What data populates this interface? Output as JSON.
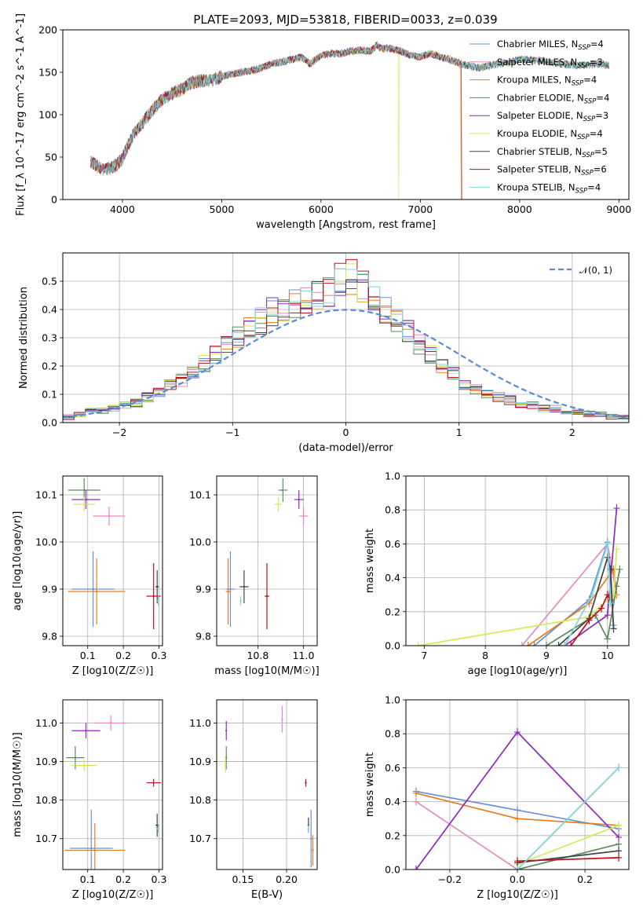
{
  "figure_title": "PLATE=2093, MJD=53818, FIBERID=0033, z=0.039",
  "colors": {
    "Chabrier MILES": "#6b8fd6",
    "Salpeter MILES": "#e68bbf",
    "Kroupa MILES": "#e87d1e",
    "Chabrier ELODIE": "#5e8a5e",
    "Salpeter ELODIE": "#8e2bb8",
    "Kroupa ELODIE": "#d2ea5a",
    "Chabrier STELIB": "#444444",
    "Salpeter STELIB": "#c0101a",
    "Kroupa STELIB": "#7fd6dc"
  },
  "legend": [
    {
      "name": "Chabrier MILES",
      "nssp": "4"
    },
    {
      "name": "Salpeter MILES",
      "nssp": "3"
    },
    {
      "name": "Kroupa MILES",
      "nssp": "4"
    },
    {
      "name": "Chabrier ELODIE",
      "nssp": "4"
    },
    {
      "name": "Salpeter ELODIE",
      "nssp": "3"
    },
    {
      "name": "Kroupa ELODIE",
      "nssp": "4"
    },
    {
      "name": "Chabrier STELIB",
      "nssp": "5"
    },
    {
      "name": "Salpeter STELIB",
      "nssp": "6"
    },
    {
      "name": "Kroupa STELIB",
      "nssp": "4"
    }
  ],
  "chart_data": [
    {
      "type": "line",
      "id": "spectrum",
      "title": "PLATE=2093, MJD=53818, FIBERID=0033, z=0.039",
      "xlabel": "wavelength [Angstrom, rest frame]",
      "ylabel": "Flux [f_λ 10^-17 erg cm^-2 s^-1 A^-1]",
      "xlim": [
        3400,
        9100
      ],
      "ylim": [
        0,
        200
      ],
      "xticks": [
        4000,
        5000,
        6000,
        7000,
        8000,
        9000
      ],
      "yticks": [
        0,
        50,
        100,
        150,
        200
      ],
      "x": [
        3680,
        3800,
        3900,
        3950,
        4000,
        4100,
        4200,
        4300,
        4400,
        4500,
        4600,
        4700,
        4800,
        4900,
        5000,
        5100,
        5200,
        5300,
        5400,
        5500,
        5600,
        5700,
        5800,
        5890,
        6000,
        6100,
        6200,
        6300,
        6400,
        6500,
        6563,
        6600,
        6700,
        6800,
        6900,
        7000,
        7100,
        7200,
        7300,
        7400,
        7600,
        7700,
        7800,
        7900,
        8000,
        8200,
        8400,
        8600,
        8800,
        8900
      ],
      "y": [
        45,
        35,
        38,
        42,
        48,
        75,
        90,
        105,
        118,
        125,
        130,
        138,
        140,
        140,
        145,
        148,
        150,
        152,
        155,
        160,
        162,
        165,
        168,
        160,
        170,
        172,
        172,
        175,
        176,
        175,
        182,
        178,
        178,
        175,
        170,
        168,
        172,
        168,
        165,
        160,
        155,
        158,
        160,
        162,
        165,
        164,
        160,
        158,
        160,
        158
      ]
    },
    {
      "type": "histogram",
      "id": "residuals",
      "xlabel": "(data-model)/error",
      "ylabel": "Normed distribution",
      "xlim": [
        -2.5,
        2.5
      ],
      "ylim": [
        0,
        0.6
      ],
      "xticks": [
        -2,
        -1,
        0,
        1,
        2
      ],
      "yticks": [
        0.0,
        0.1,
        0.2,
        0.3,
        0.4,
        0.5
      ],
      "legend_entry": "𝒩(0, 1)",
      "bin_edges": [
        -2.5,
        -2.4,
        -2.3,
        -2.2,
        -2.1,
        -2.0,
        -1.9,
        -1.8,
        -1.7,
        -1.6,
        -1.5,
        -1.4,
        -1.3,
        -1.2,
        -1.1,
        -1.0,
        -0.9,
        -0.8,
        -0.7,
        -0.6,
        -0.5,
        -0.4,
        -0.3,
        -0.2,
        -0.1,
        0.0,
        0.1,
        0.2,
        0.3,
        0.4,
        0.5,
        0.6,
        0.7,
        0.8,
        0.9,
        1.0,
        1.1,
        1.2,
        1.3,
        1.4,
        1.5,
        1.6,
        1.7,
        1.8,
        1.9,
        2.0,
        2.1,
        2.2,
        2.3,
        2.4,
        2.5
      ],
      "counts": [
        0.02,
        0.03,
        0.04,
        0.04,
        0.05,
        0.06,
        0.07,
        0.09,
        0.11,
        0.13,
        0.15,
        0.18,
        0.21,
        0.24,
        0.27,
        0.3,
        0.33,
        0.36,
        0.39,
        0.41,
        0.42,
        0.43,
        0.45,
        0.47,
        0.5,
        0.52,
        0.48,
        0.44,
        0.4,
        0.36,
        0.33,
        0.28,
        0.24,
        0.2,
        0.17,
        0.14,
        0.12,
        0.1,
        0.09,
        0.08,
        0.06,
        0.06,
        0.05,
        0.05,
        0.04,
        0.04,
        0.03,
        0.03,
        0.02,
        0.02
      ],
      "normal_mean": 0,
      "normal_sigma": 1
    },
    {
      "type": "scatter",
      "id": "age-vs-Z",
      "xlabel": "Z [log10(Z/Z☉)]",
      "ylabel": "age [log10(age/yr)]",
      "xlim": [
        0.03,
        0.31
      ],
      "ylim": [
        9.78,
        10.14
      ],
      "xticks": [
        0.1,
        0.2,
        0.3
      ],
      "yticks": [
        9.8,
        9.9,
        10.0,
        10.1
      ],
      "points": [
        {
          "series": "Chabrier MILES",
          "x": 0.115,
          "y": 9.9,
          "xerr": 0.06,
          "yerr": 0.08
        },
        {
          "series": "Salpeter MILES",
          "x": 0.16,
          "y": 10.055,
          "xerr": 0.045,
          "yerr": 0.02
        },
        {
          "series": "Kroupa MILES",
          "x": 0.125,
          "y": 9.895,
          "xerr": 0.08,
          "yerr": 0.07
        },
        {
          "series": "Chabrier ELODIE",
          "x": 0.09,
          "y": 10.11,
          "xerr": 0.045,
          "yerr": 0.025
        },
        {
          "series": "Salpeter ELODIE",
          "x": 0.095,
          "y": 10.09,
          "xerr": 0.04,
          "yerr": 0.02
        },
        {
          "series": "Kroupa ELODIE",
          "x": 0.09,
          "y": 10.08,
          "xerr": 0.03,
          "yerr": 0.015
        },
        {
          "series": "Chabrier STELIB",
          "x": 0.295,
          "y": 9.905,
          "xerr": 0.005,
          "yerr": 0.035
        },
        {
          "series": "Salpeter STELIB",
          "x": 0.285,
          "y": 9.885,
          "xerr": 0.02,
          "yerr": 0.07
        },
        {
          "series": "Kroupa STELIB",
          "x": 0.298,
          "y": 9.875,
          "xerr": 0.004,
          "yerr": 0.01
        }
      ]
    },
    {
      "type": "scatter",
      "id": "age-vs-mass",
      "xlabel": "mass [log10(M/M☉)]",
      "ylabel": "",
      "xlim": [
        10.62,
        11.06
      ],
      "ylim": [
        9.78,
        10.14
      ],
      "xticks": [
        10.8,
        11.0
      ],
      "yticks": [
        9.8,
        9.9,
        10.0,
        10.1
      ],
      "points": [
        {
          "series": "Chabrier MILES",
          "x": 10.68,
          "y": 9.9,
          "xerr": 0.02,
          "yerr": 0.08
        },
        {
          "series": "Salpeter MILES",
          "x": 11.0,
          "y": 10.055,
          "xerr": 0.02,
          "yerr": 0.02
        },
        {
          "series": "Kroupa MILES",
          "x": 10.67,
          "y": 9.895,
          "xerr": 0.01,
          "yerr": 0.07
        },
        {
          "series": "Chabrier ELODIE",
          "x": 10.91,
          "y": 10.11,
          "xerr": 0.02,
          "yerr": 0.025
        },
        {
          "series": "Salpeter ELODIE",
          "x": 10.98,
          "y": 10.09,
          "xerr": 0.02,
          "yerr": 0.02
        },
        {
          "series": "Kroupa ELODIE",
          "x": 10.89,
          "y": 10.08,
          "xerr": 0.015,
          "yerr": 0.015
        },
        {
          "series": "Chabrier STELIB",
          "x": 10.74,
          "y": 9.905,
          "xerr": 0.02,
          "yerr": 0.035
        },
        {
          "series": "Salpeter STELIB",
          "x": 10.84,
          "y": 9.885,
          "xerr": 0.01,
          "yerr": 0.07
        },
        {
          "series": "Kroupa STELIB",
          "x": 10.725,
          "y": 9.875,
          "xerr": 0.005,
          "yerr": 0.01
        }
      ]
    },
    {
      "type": "line",
      "id": "mass-weight-vs-age",
      "xlabel": "age [log10(age/yr)]",
      "ylabel": "mass weight",
      "xlim": [
        6.7,
        10.35
      ],
      "ylim": [
        0,
        1.0
      ],
      "xticks": [
        7,
        8,
        9,
        10
      ],
      "yticks": [
        0.0,
        0.2,
        0.4,
        0.6,
        0.8,
        1.0
      ],
      "series": [
        {
          "name": "Chabrier MILES",
          "x": [
            8.8,
            9.7,
            10.0,
            10.1
          ],
          "y": [
            0.0,
            0.27,
            0.61,
            0.12
          ]
        },
        {
          "name": "Salpeter MILES",
          "x": [
            8.6,
            10.0,
            10.1
          ],
          "y": [
            0.0,
            0.6,
            0.4
          ]
        },
        {
          "name": "Kroupa MILES",
          "x": [
            8.7,
            9.7,
            10.1,
            10.15
          ],
          "y": [
            0.0,
            0.25,
            0.45,
            0.3
          ]
        },
        {
          "name": "Chabrier ELODIE",
          "x": [
            9.0,
            9.8,
            10.0,
            10.15,
            10.2
          ],
          "y": [
            0.0,
            0.18,
            0.04,
            0.35,
            0.45
          ]
        },
        {
          "name": "Salpeter ELODIE",
          "x": [
            9.3,
            10.0,
            10.15
          ],
          "y": [
            0.0,
            0.18,
            0.81
          ]
        },
        {
          "name": "Kroupa ELODIE",
          "x": [
            6.9,
            9.7,
            10.1,
            10.15
          ],
          "y": [
            0.0,
            0.17,
            0.3,
            0.57
          ]
        },
        {
          "name": "Chabrier STELIB",
          "x": [
            9.2,
            9.7,
            10.0,
            10.05,
            10.1
          ],
          "y": [
            0.0,
            0.16,
            0.52,
            0.45,
            0.1
          ]
        },
        {
          "name": "Salpeter STELIB",
          "x": [
            9.4,
            9.7,
            9.9,
            10.0,
            10.05
          ],
          "y": [
            0.0,
            0.15,
            0.22,
            0.3,
            0.27
          ]
        },
        {
          "name": "Kroupa STELIB",
          "x": [
            9.3,
            9.75,
            10.0,
            10.05
          ],
          "y": [
            0.0,
            0.3,
            0.6,
            0.25
          ]
        }
      ]
    },
    {
      "type": "scatter",
      "id": "mass-vs-Z",
      "xlabel": "Z [log10(Z/Z☉)]",
      "ylabel": "mass [log10(M/M☉)]",
      "xlim": [
        0.03,
        0.31
      ],
      "ylim": [
        10.62,
        11.06
      ],
      "xticks": [
        0.1,
        0.2,
        0.3
      ],
      "yticks": [
        10.7,
        10.8,
        10.9,
        11.0
      ],
      "points": [
        {
          "series": "Chabrier MILES",
          "x": 0.11,
          "y": 10.675,
          "xerr": 0.06,
          "yerr": 0.1
        },
        {
          "series": "Salpeter MILES",
          "x": 0.165,
          "y": 11.0,
          "xerr": 0.045,
          "yerr": 0.02
        },
        {
          "series": "Kroupa MILES",
          "x": 0.12,
          "y": 10.67,
          "xerr": 0.085,
          "yerr": 0.07
        },
        {
          "series": "Chabrier ELODIE",
          "x": 0.065,
          "y": 10.91,
          "xerr": 0.025,
          "yerr": 0.03
        },
        {
          "series": "Salpeter ELODIE",
          "x": 0.095,
          "y": 10.98,
          "xerr": 0.04,
          "yerr": 0.02
        },
        {
          "series": "Kroupa ELODIE",
          "x": 0.09,
          "y": 10.89,
          "xerr": 0.035,
          "yerr": 0.015
        },
        {
          "series": "Chabrier STELIB",
          "x": 0.295,
          "y": 10.735,
          "xerr": 0.005,
          "yerr": 0.03
        },
        {
          "series": "Salpeter STELIB",
          "x": 0.285,
          "y": 10.845,
          "xerr": 0.02,
          "yerr": 0.01
        },
        {
          "series": "Kroupa STELIB",
          "x": 0.298,
          "y": 10.725,
          "xerr": 0.004,
          "yerr": 0.01
        }
      ]
    },
    {
      "type": "scatter",
      "id": "mass-vs-EBV",
      "xlabel": "E(B-V)",
      "ylabel": "",
      "xlim": [
        0.12,
        0.235
      ],
      "ylim": [
        10.62,
        11.06
      ],
      "xticks": [
        0.15,
        0.2
      ],
      "yticks": [
        10.7,
        10.8,
        10.9,
        11.0
      ],
      "points": [
        {
          "series": "Chabrier MILES",
          "x": 0.228,
          "y": 10.7,
          "xerr": 0.0,
          "yerr": 0.075
        },
        {
          "series": "Salpeter MILES",
          "x": 0.195,
          "y": 11.01,
          "xerr": 0.0,
          "yerr": 0.035
        },
        {
          "series": "Kroupa MILES",
          "x": 0.23,
          "y": 10.67,
          "xerr": 0.0,
          "yerr": 0.04
        },
        {
          "series": "Chabrier ELODIE",
          "x": 0.131,
          "y": 10.91,
          "xerr": 0.0,
          "yerr": 0.03
        },
        {
          "series": "Salpeter ELODIE",
          "x": 0.131,
          "y": 10.98,
          "xerr": 0.0,
          "yerr": 0.025
        },
        {
          "series": "Kroupa ELODIE",
          "x": 0.13,
          "y": 10.89,
          "xerr": 0.0,
          "yerr": 0.02
        },
        {
          "series": "Chabrier STELIB",
          "x": 0.225,
          "y": 10.735,
          "xerr": 0.0,
          "yerr": 0.02
        },
        {
          "series": "Salpeter STELIB",
          "x": 0.222,
          "y": 10.845,
          "xerr": 0.0,
          "yerr": 0.01
        },
        {
          "series": "Kroupa STELIB",
          "x": 0.225,
          "y": 10.725,
          "xerr": 0.0,
          "yerr": 0.01
        }
      ]
    },
    {
      "type": "line",
      "id": "mass-weight-vs-Z",
      "xlabel": "Z [log10(Z/Z☉)]",
      "ylabel": "mass weight",
      "xlim": [
        -0.33,
        0.33
      ],
      "ylim": [
        0,
        1.0
      ],
      "xticks": [
        -0.2,
        0.0,
        0.2
      ],
      "yticks": [
        0.0,
        0.2,
        0.4,
        0.6,
        0.8,
        1.0
      ],
      "series": [
        {
          "name": "Chabrier MILES",
          "x": [
            -0.3,
            0.0,
            0.3
          ],
          "y": [
            0.46,
            0.35,
            0.24
          ]
        },
        {
          "name": "Salpeter MILES",
          "x": [
            -0.3,
            0.0,
            0.3
          ],
          "y": [
            0.4,
            0.0,
            0.6
          ]
        },
        {
          "name": "Kroupa MILES",
          "x": [
            -0.3,
            0.0,
            0.3
          ],
          "y": [
            0.45,
            0.3,
            0.26
          ]
        },
        {
          "name": "Chabrier ELODIE",
          "x": [
            0.0,
            0.3
          ],
          "y": [
            0.0,
            0.15
          ]
        },
        {
          "name": "Salpeter ELODIE",
          "x": [
            -0.3,
            0.0,
            0.3
          ],
          "y": [
            0.0,
            0.81,
            0.19
          ]
        },
        {
          "name": "Kroupa ELODIE",
          "x": [
            0.0,
            0.3
          ],
          "y": [
            0.03,
            0.26
          ]
        },
        {
          "name": "Chabrier STELIB",
          "x": [
            0.0,
            0.3
          ],
          "y": [
            0.04,
            0.11
          ]
        },
        {
          "name": "Salpeter STELIB",
          "x": [
            0.0,
            0.3
          ],
          "y": [
            0.05,
            0.07
          ]
        },
        {
          "name": "Kroupa STELIB",
          "x": [
            0.0,
            0.3
          ],
          "y": [
            0.0,
            0.6
          ]
        }
      ]
    }
  ]
}
